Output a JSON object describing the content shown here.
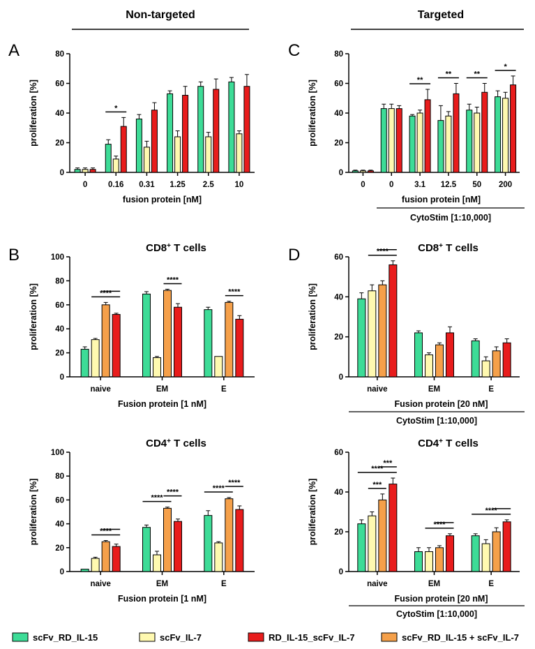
{
  "headers": {
    "left": "Non-targeted",
    "right": "Targeted"
  },
  "colors": {
    "scFv_RD_IL-15": "#3ddc97",
    "scFv_IL-7": "#fff9b0",
    "RD_IL-15_scFv_IL-7": "#e81c1c",
    "scFv_RD_IL-15 + scFv_IL-7": "#f5a04a",
    "line": "#000000"
  },
  "legend": [
    {
      "label": "scFv_RD_IL-15",
      "color_key": "scFv_RD_IL-15"
    },
    {
      "label": "scFv_IL-7",
      "color_key": "scFv_IL-7"
    },
    {
      "label": "RD_IL-15_scFv_IL-7",
      "color_key": "RD_IL-15_scFv_IL-7"
    },
    {
      "label": "scFv_RD_IL-15 + scFv_IL-7",
      "color_key": "scFv_RD_IL-15 + scFv_IL-7"
    }
  ],
  "chart_data": [
    {
      "panel": "A",
      "type": "bar",
      "title": "",
      "xlabel": "fusion protein [nM]",
      "xlabel2": "",
      "ylabel": "proliferation [%]",
      "ylim": [
        0,
        80
      ],
      "yticks": [
        0,
        20,
        40,
        60,
        80
      ],
      "categories": [
        "0",
        "0.16",
        "0.31",
        "1.25",
        "2.5",
        "10"
      ],
      "series": [
        {
          "name": "scFv_RD_IL-15",
          "values": [
            2,
            19,
            36,
            53,
            58,
            61
          ],
          "errors": [
            1,
            3,
            3,
            2,
            3,
            3
          ]
        },
        {
          "name": "scFv_IL-7",
          "values": [
            2,
            9,
            17,
            24,
            24,
            26
          ],
          "errors": [
            1,
            2,
            4,
            4,
            3,
            2
          ]
        },
        {
          "name": "RD_IL-15_scFv_IL-7",
          "values": [
            2,
            31,
            42,
            52,
            56,
            58
          ],
          "errors": [
            1,
            6,
            5,
            6,
            7,
            8
          ]
        }
      ],
      "annotations": [
        {
          "label": "*",
          "from": [
            1,
            0
          ],
          "to": [
            1,
            2
          ]
        }
      ]
    },
    {
      "panel": "C",
      "type": "bar",
      "title": "",
      "xlabel": "fusion protein [nM]",
      "xlabel2": "CytoStim [1:10,000]",
      "ylabel": "proliferation [%]",
      "ylim": [
        0,
        80
      ],
      "yticks": [
        0,
        20,
        40,
        60,
        80
      ],
      "categories": [
        "0",
        "0",
        "3.1",
        "12.5",
        "50",
        "200"
      ],
      "series": [
        {
          "name": "scFv_RD_IL-15",
          "values": [
            1,
            43,
            38,
            35,
            42,
            51
          ],
          "errors": [
            0.5,
            3,
            1,
            10,
            4,
            4
          ]
        },
        {
          "name": "scFv_IL-7",
          "values": [
            1,
            43,
            40,
            38,
            40,
            50
          ],
          "errors": [
            0.5,
            3,
            2,
            3,
            4,
            4
          ]
        },
        {
          "name": "RD_IL-15_scFv_IL-7",
          "values": [
            1,
            43,
            49,
            53,
            54,
            59
          ],
          "errors": [
            0.5,
            2,
            7,
            7,
            6,
            6
          ]
        }
      ],
      "annotations": [
        {
          "label": "**",
          "from": [
            2,
            0
          ],
          "to": [
            2,
            2
          ]
        },
        {
          "label": "**",
          "from": [
            3,
            0
          ],
          "to": [
            3,
            2
          ]
        },
        {
          "label": "**",
          "from": [
            4,
            0
          ],
          "to": [
            4,
            2
          ]
        },
        {
          "label": "*",
          "from": [
            5,
            0
          ],
          "to": [
            5,
            2
          ]
        }
      ]
    },
    {
      "panel": "B",
      "type": "bar",
      "title": "CD8+ T cells",
      "xlabel": "Fusion protein [1 nM]",
      "xlabel2": "",
      "ylabel": "proliferation [%]",
      "ylim": [
        0,
        100
      ],
      "yticks": [
        0,
        20,
        40,
        60,
        80,
        100
      ],
      "categories": [
        "naive",
        "EM",
        "E"
      ],
      "series": [
        {
          "name": "scFv_RD_IL-15",
          "values": [
            23,
            69,
            56
          ],
          "errors": [
            2,
            2,
            2
          ]
        },
        {
          "name": "scFv_IL-7",
          "values": [
            31,
            16,
            17
          ],
          "errors": [
            1,
            1,
            0
          ]
        },
        {
          "name": "scFv_RD_IL-15 + scFv_IL-7",
          "values": [
            60,
            72,
            62
          ],
          "errors": [
            2,
            1,
            1
          ]
        },
        {
          "name": "RD_IL-15_scFv_IL-7",
          "values": [
            52,
            58,
            48
          ],
          "errors": [
            1,
            3,
            3
          ]
        }
      ],
      "annotations": [
        {
          "label": "****",
          "from": [
            0,
            1
          ],
          "to": [
            0,
            3
          ]
        },
        {
          "label": "",
          "from": [
            0,
            2
          ],
          "to": [
            0,
            3
          ]
        },
        {
          "label": "****",
          "from": [
            1,
            2
          ],
          "to": [
            1,
            3
          ]
        },
        {
          "label": "****",
          "from": [
            2,
            2
          ],
          "to": [
            2,
            3
          ]
        }
      ]
    },
    {
      "panel": "D",
      "type": "bar",
      "title": "CD8+ T cells",
      "xlabel": "Fusion protein [20 nM]",
      "xlabel2": "CytoStim [1:10,000]",
      "ylabel": "proliferation [%]",
      "ylim": [
        0,
        60
      ],
      "yticks": [
        0,
        20,
        40,
        60
      ],
      "categories": [
        "naive",
        "EM",
        "E"
      ],
      "series": [
        {
          "name": "scFv_RD_IL-15",
          "values": [
            39,
            22,
            18
          ],
          "errors": [
            3,
            1,
            1
          ]
        },
        {
          "name": "scFv_IL-7",
          "values": [
            43,
            11,
            8
          ],
          "errors": [
            3,
            1,
            2
          ]
        },
        {
          "name": "scFv_RD_IL-15 + scFv_IL-7",
          "values": [
            46,
            16,
            13
          ],
          "errors": [
            2,
            1,
            2
          ]
        },
        {
          "name": "RD_IL-15_scFv_IL-7",
          "values": [
            56,
            22,
            17
          ],
          "errors": [
            2,
            3,
            2
          ]
        }
      ],
      "annotations": [
        {
          "label": "****",
          "from": [
            0,
            1
          ],
          "to": [
            0,
            3
          ]
        },
        {
          "label": "",
          "from": [
            0,
            2
          ],
          "to": [
            0,
            3
          ]
        }
      ]
    },
    {
      "panel": "B2",
      "type": "bar",
      "title": "CD4+ T cells",
      "xlabel": "Fusion protein [1 nM]",
      "xlabel2": "",
      "ylabel": "proliferation [%]",
      "ylim": [
        0,
        100
      ],
      "yticks": [
        0,
        20,
        40,
        60,
        80,
        100
      ],
      "categories": [
        "naive",
        "EM",
        "E"
      ],
      "series": [
        {
          "name": "scFv_RD_IL-15",
          "values": [
            2,
            37,
            47
          ],
          "errors": [
            0,
            2,
            4
          ]
        },
        {
          "name": "scFv_IL-7",
          "values": [
            11,
            14,
            24
          ],
          "errors": [
            1,
            3,
            1
          ]
        },
        {
          "name": "scFv_RD_IL-15 + scFv_IL-7",
          "values": [
            25,
            53,
            61
          ],
          "errors": [
            1,
            1,
            1
          ]
        },
        {
          "name": "RD_IL-15_scFv_IL-7",
          "values": [
            21,
            42,
            52
          ],
          "errors": [
            2,
            2,
            3
          ]
        }
      ],
      "annotations": [
        {
          "label": "****",
          "from": [
            0,
            1
          ],
          "to": [
            0,
            3
          ]
        },
        {
          "label": "",
          "from": [
            0,
            2
          ],
          "to": [
            0,
            3
          ]
        },
        {
          "label": "****",
          "from": [
            1,
            0
          ],
          "to": [
            1,
            2
          ]
        },
        {
          "label": "****",
          "from": [
            1,
            2
          ],
          "to": [
            1,
            3
          ]
        },
        {
          "label": "****",
          "from": [
            2,
            0
          ],
          "to": [
            2,
            2
          ]
        },
        {
          "label": "****",
          "from": [
            2,
            2
          ],
          "to": [
            2,
            3
          ]
        }
      ]
    },
    {
      "panel": "D2",
      "type": "bar",
      "title": "CD4+ T cells",
      "xlabel": "Fusion protein [20 nM]",
      "xlabel2": "CytoStim [1:10,000]",
      "ylabel": "proliferation [%]",
      "ylim": [
        0,
        60
      ],
      "yticks": [
        0,
        20,
        40,
        60
      ],
      "categories": [
        "naive",
        "EM",
        "E"
      ],
      "series": [
        {
          "name": "scFv_RD_IL-15",
          "values": [
            24,
            10,
            18
          ],
          "errors": [
            2,
            2,
            1
          ]
        },
        {
          "name": "scFv_IL-7",
          "values": [
            28,
            10,
            14
          ],
          "errors": [
            2,
            2,
            2
          ]
        },
        {
          "name": "scFv_RD_IL-15 + scFv_IL-7",
          "values": [
            36,
            12,
            20
          ],
          "errors": [
            3,
            1,
            2
          ]
        },
        {
          "name": "RD_IL-15_scFv_IL-7",
          "values": [
            44,
            18,
            25
          ],
          "errors": [
            3,
            1,
            1
          ]
        }
      ],
      "annotations": [
        {
          "label": "****",
          "from": [
            0,
            0
          ],
          "to": [
            0,
            3
          ]
        },
        {
          "label": "***",
          "from": [
            0,
            1
          ],
          "to": [
            0,
            2
          ]
        },
        {
          "label": "***",
          "from": [
            0,
            2
          ],
          "to": [
            0,
            3
          ]
        },
        {
          "label": "****",
          "from": [
            1,
            1
          ],
          "to": [
            1,
            3
          ]
        },
        {
          "label": "",
          "from": [
            1,
            2
          ],
          "to": [
            1,
            3
          ]
        },
        {
          "label": "****",
          "from": [
            2,
            0
          ],
          "to": [
            2,
            3
          ]
        },
        {
          "label": "",
          "from": [
            2,
            2
          ],
          "to": [
            2,
            3
          ]
        }
      ]
    }
  ]
}
